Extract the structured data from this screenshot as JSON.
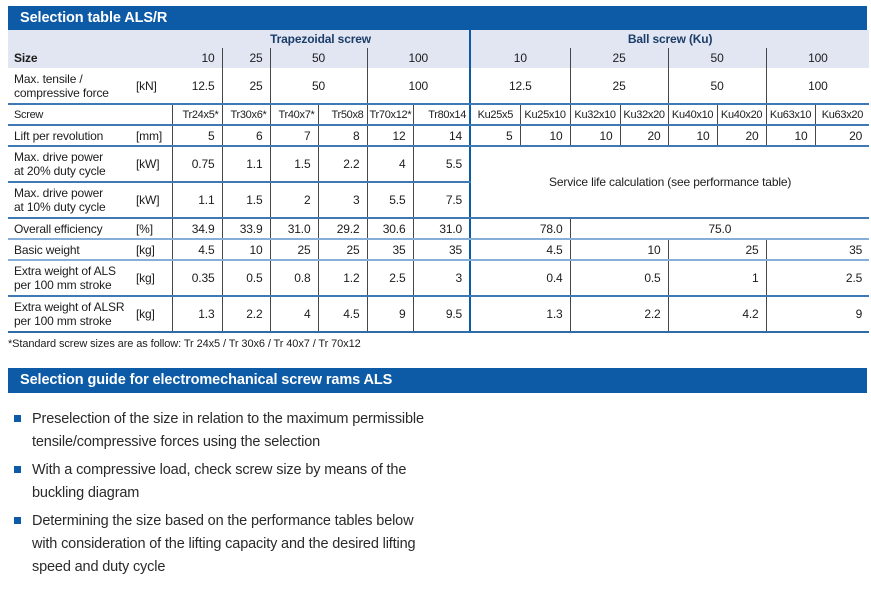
{
  "colors": {
    "accent_blue": "#0d5aa6",
    "header_lavender": "#e2e6f2",
    "row_line_blue": "#3e79b4",
    "divider_gray": "#474747"
  },
  "section1": {
    "title": "Selection table ALS/R"
  },
  "table": {
    "rows": [
      {
        "k": "rA nob",
        "cells": [
          {
            "t": "",
            "c": 2,
            "k": "lav",
            "n": "corner-cell"
          },
          {
            "t": "Trapezoidal screw",
            "c": 6,
            "k": "lav grp",
            "n": "col-group-trapezoidal-screw"
          },
          {
            "t": "Ball screw (Ku)",
            "c": 8,
            "k": "lav grp blb",
            "n": "col-group-ball-screw"
          }
        ]
      },
      {
        "k": "rB nob",
        "cells": [
          {
            "t": "Size",
            "c": 2,
            "k": "lav lbl bold",
            "n": "row-label-size"
          },
          {
            "t": "10",
            "k": "lav num"
          },
          {
            "t": "25",
            "k": "lav num bl"
          },
          {
            "t": "50",
            "c": 2,
            "k": "lav ctr bl"
          },
          {
            "t": "100",
            "c": 2,
            "k": "lav ctr bl"
          },
          {
            "t": "10",
            "c": 2,
            "k": "lav ctr blb"
          },
          {
            "t": "25",
            "c": 2,
            "k": "lav ctr bl"
          },
          {
            "t": "50",
            "c": 2,
            "k": "lav ctr bl"
          },
          {
            "t": "100",
            "c": 2,
            "k": "lav ctr bl"
          }
        ]
      },
      {
        "k": "h2l",
        "cells": [
          {
            "t": "Max. tensile /\ncompressive force",
            "k": "lbl",
            "n": "row-label-max-force"
          },
          {
            "t": "[kN]",
            "k": "unit",
            "n": "unit-kn"
          },
          {
            "t": "12.5",
            "k": "num"
          },
          {
            "t": "25",
            "k": "num bl"
          },
          {
            "t": "50",
            "c": 2,
            "k": "ctr bl"
          },
          {
            "t": "100",
            "c": 2,
            "k": "ctr bl"
          },
          {
            "t": "12.5",
            "c": 2,
            "k": "ctr blb"
          },
          {
            "t": "25",
            "c": 2,
            "k": "ctr bl"
          },
          {
            "t": "50",
            "c": 2,
            "k": "ctr bl"
          },
          {
            "t": "100",
            "c": 2,
            "k": "ctr bl"
          }
        ]
      },
      {
        "k": "h1l scr",
        "cells": [
          {
            "t": "Screw",
            "c": 2,
            "k": "lbl",
            "n": "row-label-screw"
          },
          {
            "t": "Tr24x5*",
            "k": "num bl"
          },
          {
            "t": "Tr30x6*",
            "k": "num bl"
          },
          {
            "t": "Tr40x7*",
            "k": "num bl"
          },
          {
            "t": "Tr50x8",
            "k": "num bl"
          },
          {
            "t": "Tr70x12*",
            "k": "num bl"
          },
          {
            "t": "Tr80x14",
            "k": "num bl"
          },
          {
            "t": "Ku25x5",
            "k": "ctr blb"
          },
          {
            "t": "Ku25x10",
            "k": "ctr bl"
          },
          {
            "t": "Ku32x10",
            "k": "ctr bl"
          },
          {
            "t": "Ku32x20",
            "k": "ctr bl"
          },
          {
            "t": "Ku40x10",
            "k": "ctr bl"
          },
          {
            "t": "Ku40x20",
            "k": "ctr bl"
          },
          {
            "t": "Ku63x10",
            "k": "ctr bl"
          },
          {
            "t": "Ku63x20",
            "k": "ctr bl"
          }
        ]
      },
      {
        "k": "h1l",
        "cells": [
          {
            "t": "Lift per revolution",
            "k": "lbl",
            "n": "row-label-lift"
          },
          {
            "t": "[mm]",
            "k": "unit",
            "n": "unit-mm"
          },
          {
            "t": "5",
            "k": "num bl"
          },
          {
            "t": "6",
            "k": "num bl"
          },
          {
            "t": "7",
            "k": "num bl"
          },
          {
            "t": "8",
            "k": "num bl"
          },
          {
            "t": "12",
            "k": "num bl"
          },
          {
            "t": "14",
            "k": "num bl"
          },
          {
            "t": "5",
            "k": "num blb"
          },
          {
            "t": "10",
            "k": "num bl"
          },
          {
            "t": "10",
            "k": "num bl"
          },
          {
            "t": "20",
            "k": "num bl"
          },
          {
            "t": "10",
            "k": "num bl"
          },
          {
            "t": "20",
            "k": "num bl"
          },
          {
            "t": "10",
            "k": "num bl"
          },
          {
            "t": "20",
            "k": "num bl"
          }
        ]
      },
      {
        "k": "h2l",
        "cells": [
          {
            "t": "Max. drive power\nat 20% duty cycle",
            "k": "lbl",
            "n": "row-label-power20"
          },
          {
            "t": "[kW]",
            "k": "unit",
            "n": "unit-kw"
          },
          {
            "t": "0.75",
            "k": "num bl"
          },
          {
            "t": "1.1",
            "k": "num bl"
          },
          {
            "t": "1.5",
            "k": "num bl"
          },
          {
            "t": "2.2",
            "k": "num bl"
          },
          {
            "t": "4",
            "k": "num bl"
          },
          {
            "t": "5.5",
            "k": "num bl"
          },
          {
            "t": "Service life calculation (see performance table)",
            "c": 8,
            "r": 2,
            "k": "ctr blb svc",
            "n": "service-life-note"
          }
        ]
      },
      {
        "k": "h2l",
        "cells": [
          {
            "t": "Max. drive power\nat 10% duty cycle",
            "k": "lbl",
            "n": "row-label-power10"
          },
          {
            "t": "[kW]",
            "k": "unit",
            "n": "unit-kw"
          },
          {
            "t": "1.1",
            "k": "num bl"
          },
          {
            "t": "1.5",
            "k": "num bl"
          },
          {
            "t": "2",
            "k": "num bl"
          },
          {
            "t": "3",
            "k": "num bl"
          },
          {
            "t": "5.5",
            "k": "num bl"
          },
          {
            "t": "7.5",
            "k": "num bl"
          }
        ]
      },
      {
        "k": "h1l lightb",
        "cells": [
          {
            "t": "Overall efficiency",
            "k": "lbl",
            "n": "row-label-efficiency"
          },
          {
            "t": "[%]",
            "k": "unit",
            "n": "unit-percent"
          },
          {
            "t": "34.9",
            "k": "num bl"
          },
          {
            "t": "33.9",
            "k": "num bl"
          },
          {
            "t": "31.0",
            "k": "num bl"
          },
          {
            "t": "29.2",
            "k": "num bl"
          },
          {
            "t": "30.6",
            "k": "num bl"
          },
          {
            "t": "31.0",
            "k": "num bl"
          },
          {
            "t": "78.0",
            "c": 2,
            "k": "num blb"
          },
          {
            "t": "75.0",
            "c": 6,
            "k": "ctr bl"
          }
        ]
      },
      {
        "k": "h1l lightb",
        "cells": [
          {
            "t": "Basic weight",
            "k": "lbl",
            "n": "row-label-basic-weight"
          },
          {
            "t": "[kg]",
            "k": "unit",
            "n": "unit-kg"
          },
          {
            "t": "4.5",
            "k": "num bl"
          },
          {
            "t": "10",
            "k": "num bl"
          },
          {
            "t": "25",
            "k": "num bl"
          },
          {
            "t": "25",
            "k": "num bl"
          },
          {
            "t": "35",
            "k": "num bl"
          },
          {
            "t": "35",
            "k": "num bl"
          },
          {
            "t": "4.5",
            "c": 2,
            "k": "num blb"
          },
          {
            "t": "10",
            "c": 2,
            "k": "num bl"
          },
          {
            "t": "25",
            "c": 2,
            "k": "num bl"
          },
          {
            "t": "35",
            "c": 2,
            "k": "num bl"
          }
        ]
      },
      {
        "k": "h2l",
        "cells": [
          {
            "t": "Extra weight of ALS\nper 100 mm stroke",
            "k": "lbl",
            "n": "row-label-extra-als"
          },
          {
            "t": "[kg]",
            "k": "unit",
            "n": "unit-kg"
          },
          {
            "t": "0.35",
            "k": "num bl"
          },
          {
            "t": "0.5",
            "k": "num bl"
          },
          {
            "t": "0.8",
            "k": "num bl"
          },
          {
            "t": "1.2",
            "k": "num bl"
          },
          {
            "t": "2.5",
            "k": "num bl"
          },
          {
            "t": "3",
            "k": "num bl"
          },
          {
            "t": "0.4",
            "c": 2,
            "k": "num blb"
          },
          {
            "t": "0.5",
            "c": 2,
            "k": "num bl"
          },
          {
            "t": "1",
            "c": 2,
            "k": "num bl"
          },
          {
            "t": "2.5",
            "c": 2,
            "k": "num bl"
          }
        ]
      },
      {
        "k": "h2l last",
        "cells": [
          {
            "t": "Extra weight of ALSR\nper 100 mm stroke",
            "k": "lbl",
            "n": "row-label-extra-alsr"
          },
          {
            "t": "[kg]",
            "k": "unit",
            "n": "unit-kg"
          },
          {
            "t": "1.3",
            "k": "num bl"
          },
          {
            "t": "2.2",
            "k": "num bl"
          },
          {
            "t": "4",
            "k": "num bl"
          },
          {
            "t": "4.5",
            "k": "num bl"
          },
          {
            "t": "9",
            "k": "num bl"
          },
          {
            "t": "9.5",
            "k": "num bl"
          },
          {
            "t": "1.3",
            "c": 2,
            "k": "num blb"
          },
          {
            "t": "2.2",
            "c": 2,
            "k": "num bl"
          },
          {
            "t": "4.2",
            "c": 2,
            "k": "num bl"
          },
          {
            "t": "9",
            "c": 2,
            "k": "num bl"
          }
        ]
      }
    ]
  },
  "footnote": "*Standard screw sizes are as follow: Tr 24x5 / Tr 30x6 / Tr 40x7 / Tr 70x12",
  "section2": {
    "title": "Selection guide for electromechanical screw rams ALS"
  },
  "guide": {
    "bullets": [
      "Preselection of the size in relation to the maximum permissible\ntensile/compressive forces using the selection",
      "With a compressive load, check screw size by means of the\nbuckling diagram",
      "Determining the size based on the performance tables below\nwith consideration of the lifting capacity and the desired lifting\nspeed and duty cycle"
    ]
  }
}
